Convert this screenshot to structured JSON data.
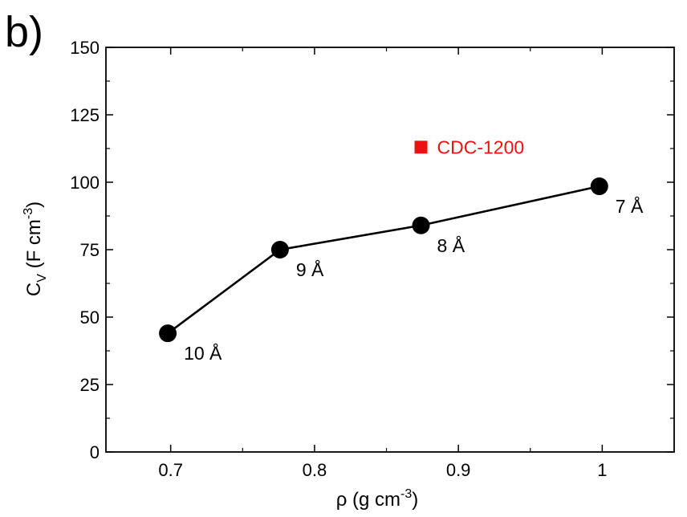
{
  "panel_label": "b)",
  "chart_data": {
    "type": "scatter",
    "xlabel": {
      "text": "ρ (g cm",
      "sup": "-3",
      "close": ")"
    },
    "ylabel": {
      "text": "C",
      "sub": "V",
      "rest": " (F cm",
      "sup": "-3",
      "close": ")"
    },
    "xlim": [
      0.655,
      1.05
    ],
    "ylim": [
      0,
      150
    ],
    "xticks": [
      0.7,
      0.8,
      0.9,
      1.0
    ],
    "xtick_labels": [
      "0.7",
      "0.8",
      "0.9",
      "1"
    ],
    "yticks": [
      0,
      25,
      50,
      75,
      100,
      125,
      150
    ],
    "ytick_labels": [
      "0",
      "25",
      "50",
      "75",
      "100",
      "125",
      "150"
    ],
    "grid": false,
    "series": [
      {
        "marker": "circle",
        "line": true,
        "color": "#000000",
        "points": [
          {
            "x": 0.698,
            "y": 44,
            "label": "10 Å"
          },
          {
            "x": 0.776,
            "y": 75,
            "label": "9 Å"
          },
          {
            "x": 0.874,
            "y": 84,
            "label": "8 Å"
          },
          {
            "x": 0.998,
            "y": 98.5,
            "label": "7 Å"
          }
        ]
      },
      {
        "name": "CDC-1200",
        "marker": "square",
        "line": false,
        "color": "#ee1111",
        "points": [
          {
            "x": 0.874,
            "y": 113
          }
        ]
      }
    ]
  }
}
